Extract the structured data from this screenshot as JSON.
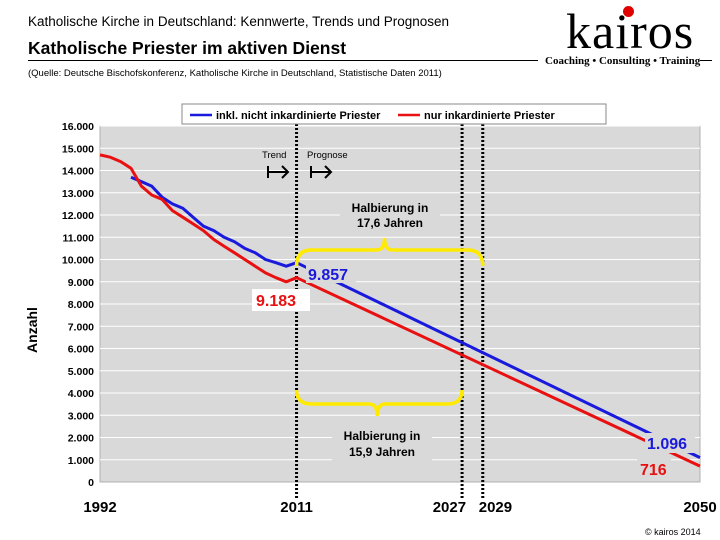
{
  "header": {
    "subtitle": "Katholische Kirche in Deutschland: Kennwerte, Trends und Prognosen",
    "title": "Katholische Priester im aktiven Dienst",
    "source": "(Quelle: Deutsche Bischofskonferenz, Katholische Kirche in Deutschland, Statistische Daten 2011)"
  },
  "logo": {
    "name": "kairos",
    "tagline": "Coaching • Consulting • Training",
    "dot_color": "#e10000"
  },
  "footer": {
    "copyright": "© kairos 2014"
  },
  "chart_data": {
    "type": "line",
    "title": "",
    "ylabel": "Anzahl",
    "xlabel": "",
    "ylim": [
      0,
      16000
    ],
    "xlim": [
      1992,
      2050
    ],
    "yticks": [
      "0",
      "1.000",
      "2.000",
      "3.000",
      "4.000",
      "5.000",
      "6.000",
      "7.000",
      "8.000",
      "9.000",
      "10.000",
      "11.000",
      "12.000",
      "13.000",
      "14.000",
      "15.000",
      "16.000"
    ],
    "xticks": [
      {
        "value": 1992,
        "label": "1992"
      },
      {
        "value": 2011,
        "label": "2011"
      },
      {
        "value": 2027,
        "label": "2027"
      },
      {
        "value": 2029,
        "label": "2029"
      },
      {
        "value": 2050,
        "label": "2050"
      }
    ],
    "grid": true,
    "legend_position": "top",
    "series": [
      {
        "name": "inkl. nicht inkardinierte Priester",
        "color": "#1a1adc",
        "x": [
          1995,
          1996,
          1997,
          1998,
          1999,
          2000,
          2001,
          2002,
          2003,
          2004,
          2005,
          2006,
          2007,
          2008,
          2009,
          2010,
          2011,
          2050
        ],
        "y": [
          13700,
          13500,
          13300,
          12800,
          12500,
          12300,
          11900,
          11500,
          11300,
          11000,
          10800,
          10500,
          10300,
          10000,
          9857,
          9700,
          9857,
          1096
        ]
      },
      {
        "name": "nur inkardinierte Priester",
        "color": "#e81010",
        "x": [
          1992,
          1993,
          1994,
          1995,
          1996,
          1997,
          1998,
          1999,
          2000,
          2001,
          2002,
          2003,
          2004,
          2005,
          2006,
          2007,
          2008,
          2009,
          2010,
          2011,
          2050
        ],
        "y": [
          14700,
          14600,
          14400,
          14100,
          13300,
          12900,
          12700,
          12200,
          11900,
          11600,
          11300,
          10900,
          10600,
          10300,
          10000,
          9700,
          9400,
          9183,
          9000,
          9183,
          716
        ]
      }
    ],
    "annotations": {
      "trend": "Trend",
      "prognose": "Prognose",
      "halving_upper": [
        "Halbierung in",
        "17,6 Jahren"
      ],
      "halving_lower": [
        "Halbierung in",
        "15,9 Jahren"
      ],
      "blue_2011_label": "9.857",
      "red_2011_label": "9.183",
      "blue_2050_label": "1.096",
      "red_2050_label": "716"
    },
    "reference_lines": [
      2011,
      2027,
      2029
    ]
  }
}
